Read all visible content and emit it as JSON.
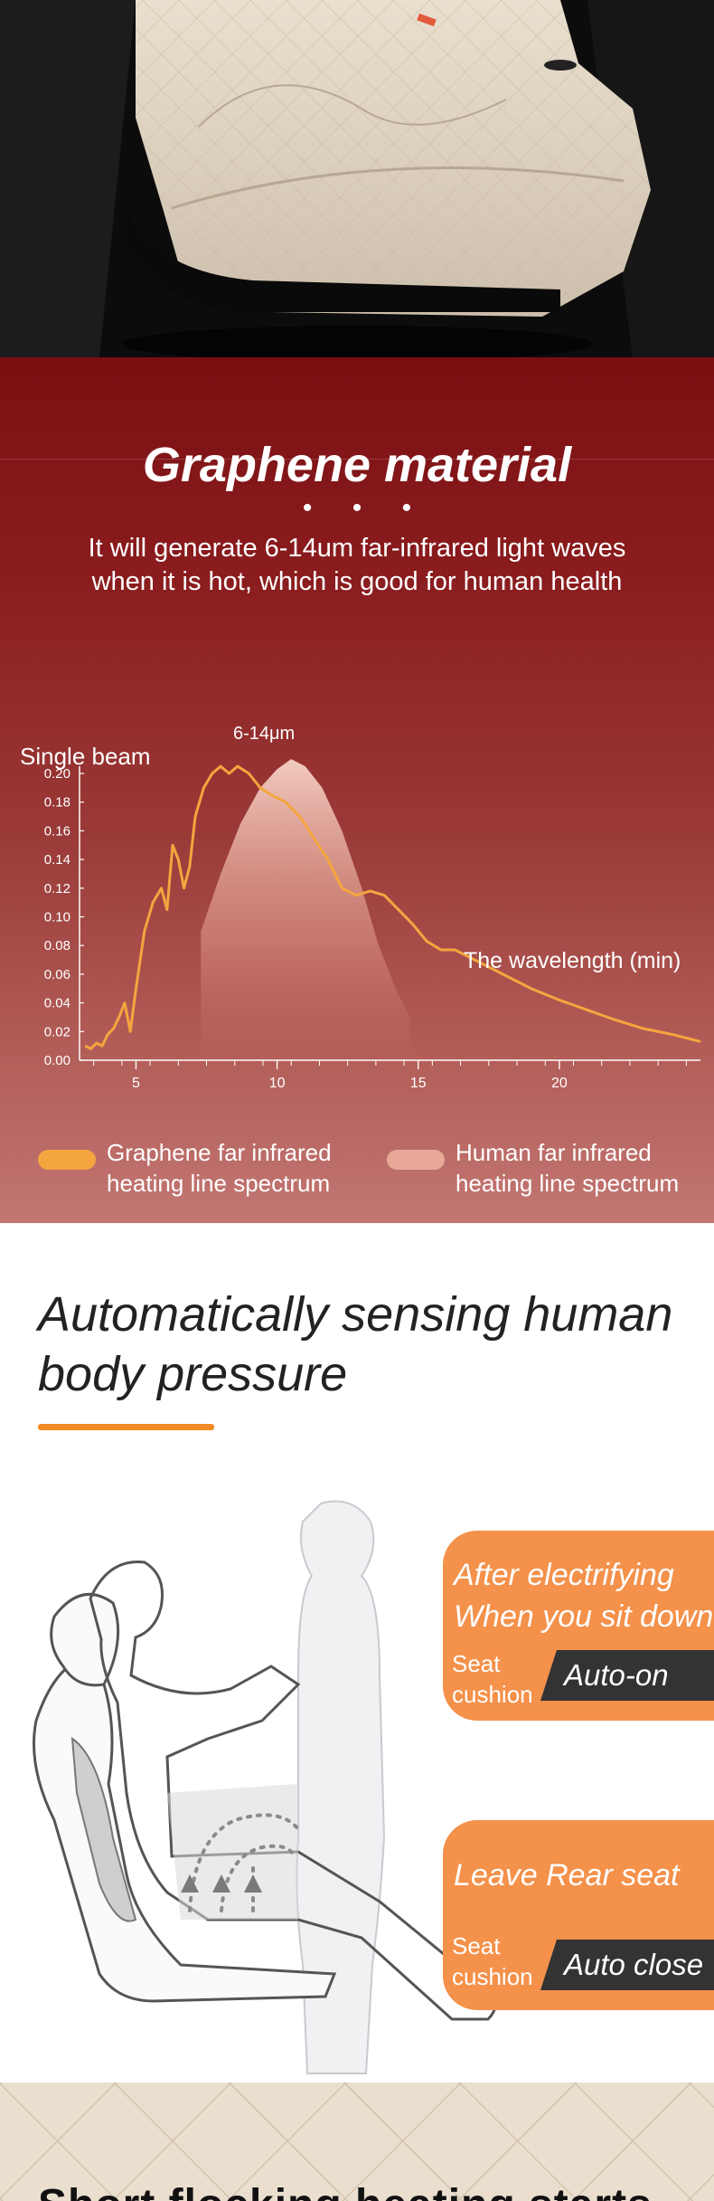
{
  "colors": {
    "accent_orange": "#f08c22",
    "graphene_line": "#f5a53f",
    "human_curve": "#f2c2b4",
    "card_orange": "#f4914a",
    "pill_dark": "#333333"
  },
  "graphene": {
    "title": "Graphene material",
    "dots": "• • •",
    "description": "It will generate 6-14um far-infrared light waves when it is hot, which is good for human health"
  },
  "chart_data": {
    "type": "line",
    "annotation": "6-14μm",
    "ylabel": "Single beam",
    "xlabel": "The wavelength (min)",
    "xlim": [
      3,
      25
    ],
    "ylim": [
      0,
      0.2
    ],
    "x_ticks": [
      "5",
      "10",
      "15",
      "20"
    ],
    "y_ticks": [
      "0.00",
      "0.02",
      "0.04",
      "0.06",
      "0.08",
      "0.10",
      "0.12",
      "0.14",
      "0.16",
      "0.18",
      "0.20"
    ],
    "series": [
      {
        "name": "Graphene far infrared heating line spectrum",
        "x": [
          3.2,
          3.4,
          3.6,
          3.8,
          4.0,
          4.2,
          4.4,
          4.6,
          4.8,
          5.0,
          5.3,
          5.6,
          5.9,
          6.1,
          6.3,
          6.5,
          6.7,
          6.9,
          7.1,
          7.4,
          7.7,
          8.0,
          8.3,
          8.6,
          9.0,
          9.4,
          9.8,
          10.3,
          10.8,
          11.3,
          11.8,
          12.3,
          12.8,
          13.3,
          13.8,
          14.3,
          14.8,
          15.3,
          15.8,
          16.3,
          17.0,
          18.0,
          19.0,
          20.0,
          21.0,
          22.0,
          23.0,
          24.0,
          25.0
        ],
        "y": [
          0.01,
          0.008,
          0.012,
          0.01,
          0.018,
          0.022,
          0.03,
          0.04,
          0.02,
          0.05,
          0.09,
          0.11,
          0.12,
          0.105,
          0.15,
          0.14,
          0.12,
          0.135,
          0.17,
          0.19,
          0.2,
          0.205,
          0.2,
          0.205,
          0.2,
          0.19,
          0.185,
          0.18,
          0.17,
          0.155,
          0.14,
          0.12,
          0.115,
          0.118,
          0.115,
          0.105,
          0.095,
          0.083,
          0.077,
          0.077,
          0.07,
          0.06,
          0.05,
          0.042,
          0.035,
          0.028,
          0.022,
          0.018,
          0.013
        ]
      },
      {
        "name": "Human far infrared heating line spectrum",
        "x": [
          7.3,
          8.0,
          8.7,
          9.4,
          10.0,
          10.5,
          11.0,
          11.6,
          12.3,
          13.0,
          13.6,
          14.2,
          14.7
        ],
        "y": [
          0.09,
          0.13,
          0.165,
          0.19,
          0.203,
          0.21,
          0.205,
          0.19,
          0.16,
          0.12,
          0.08,
          0.05,
          0.03
        ]
      }
    ],
    "legend_position": "bottom"
  },
  "legend": {
    "graphene_label": "Graphene far infrared heating line spectrum",
    "human_label": "Human far infrared heating line spectrum"
  },
  "pressure": {
    "title": "Automatically sensing human body pressure",
    "card1": {
      "line1": "After electrifying",
      "line2": "When you sit down",
      "sub1": "Seat",
      "sub2": "cushion",
      "badge": "Auto-on"
    },
    "card2": {
      "line1": "Leave Rear seat",
      "sub1": "Seat",
      "sub2": "cushion",
      "badge": "Auto close"
    }
  },
  "footer": {
    "title": "Short flocking heating starts"
  }
}
